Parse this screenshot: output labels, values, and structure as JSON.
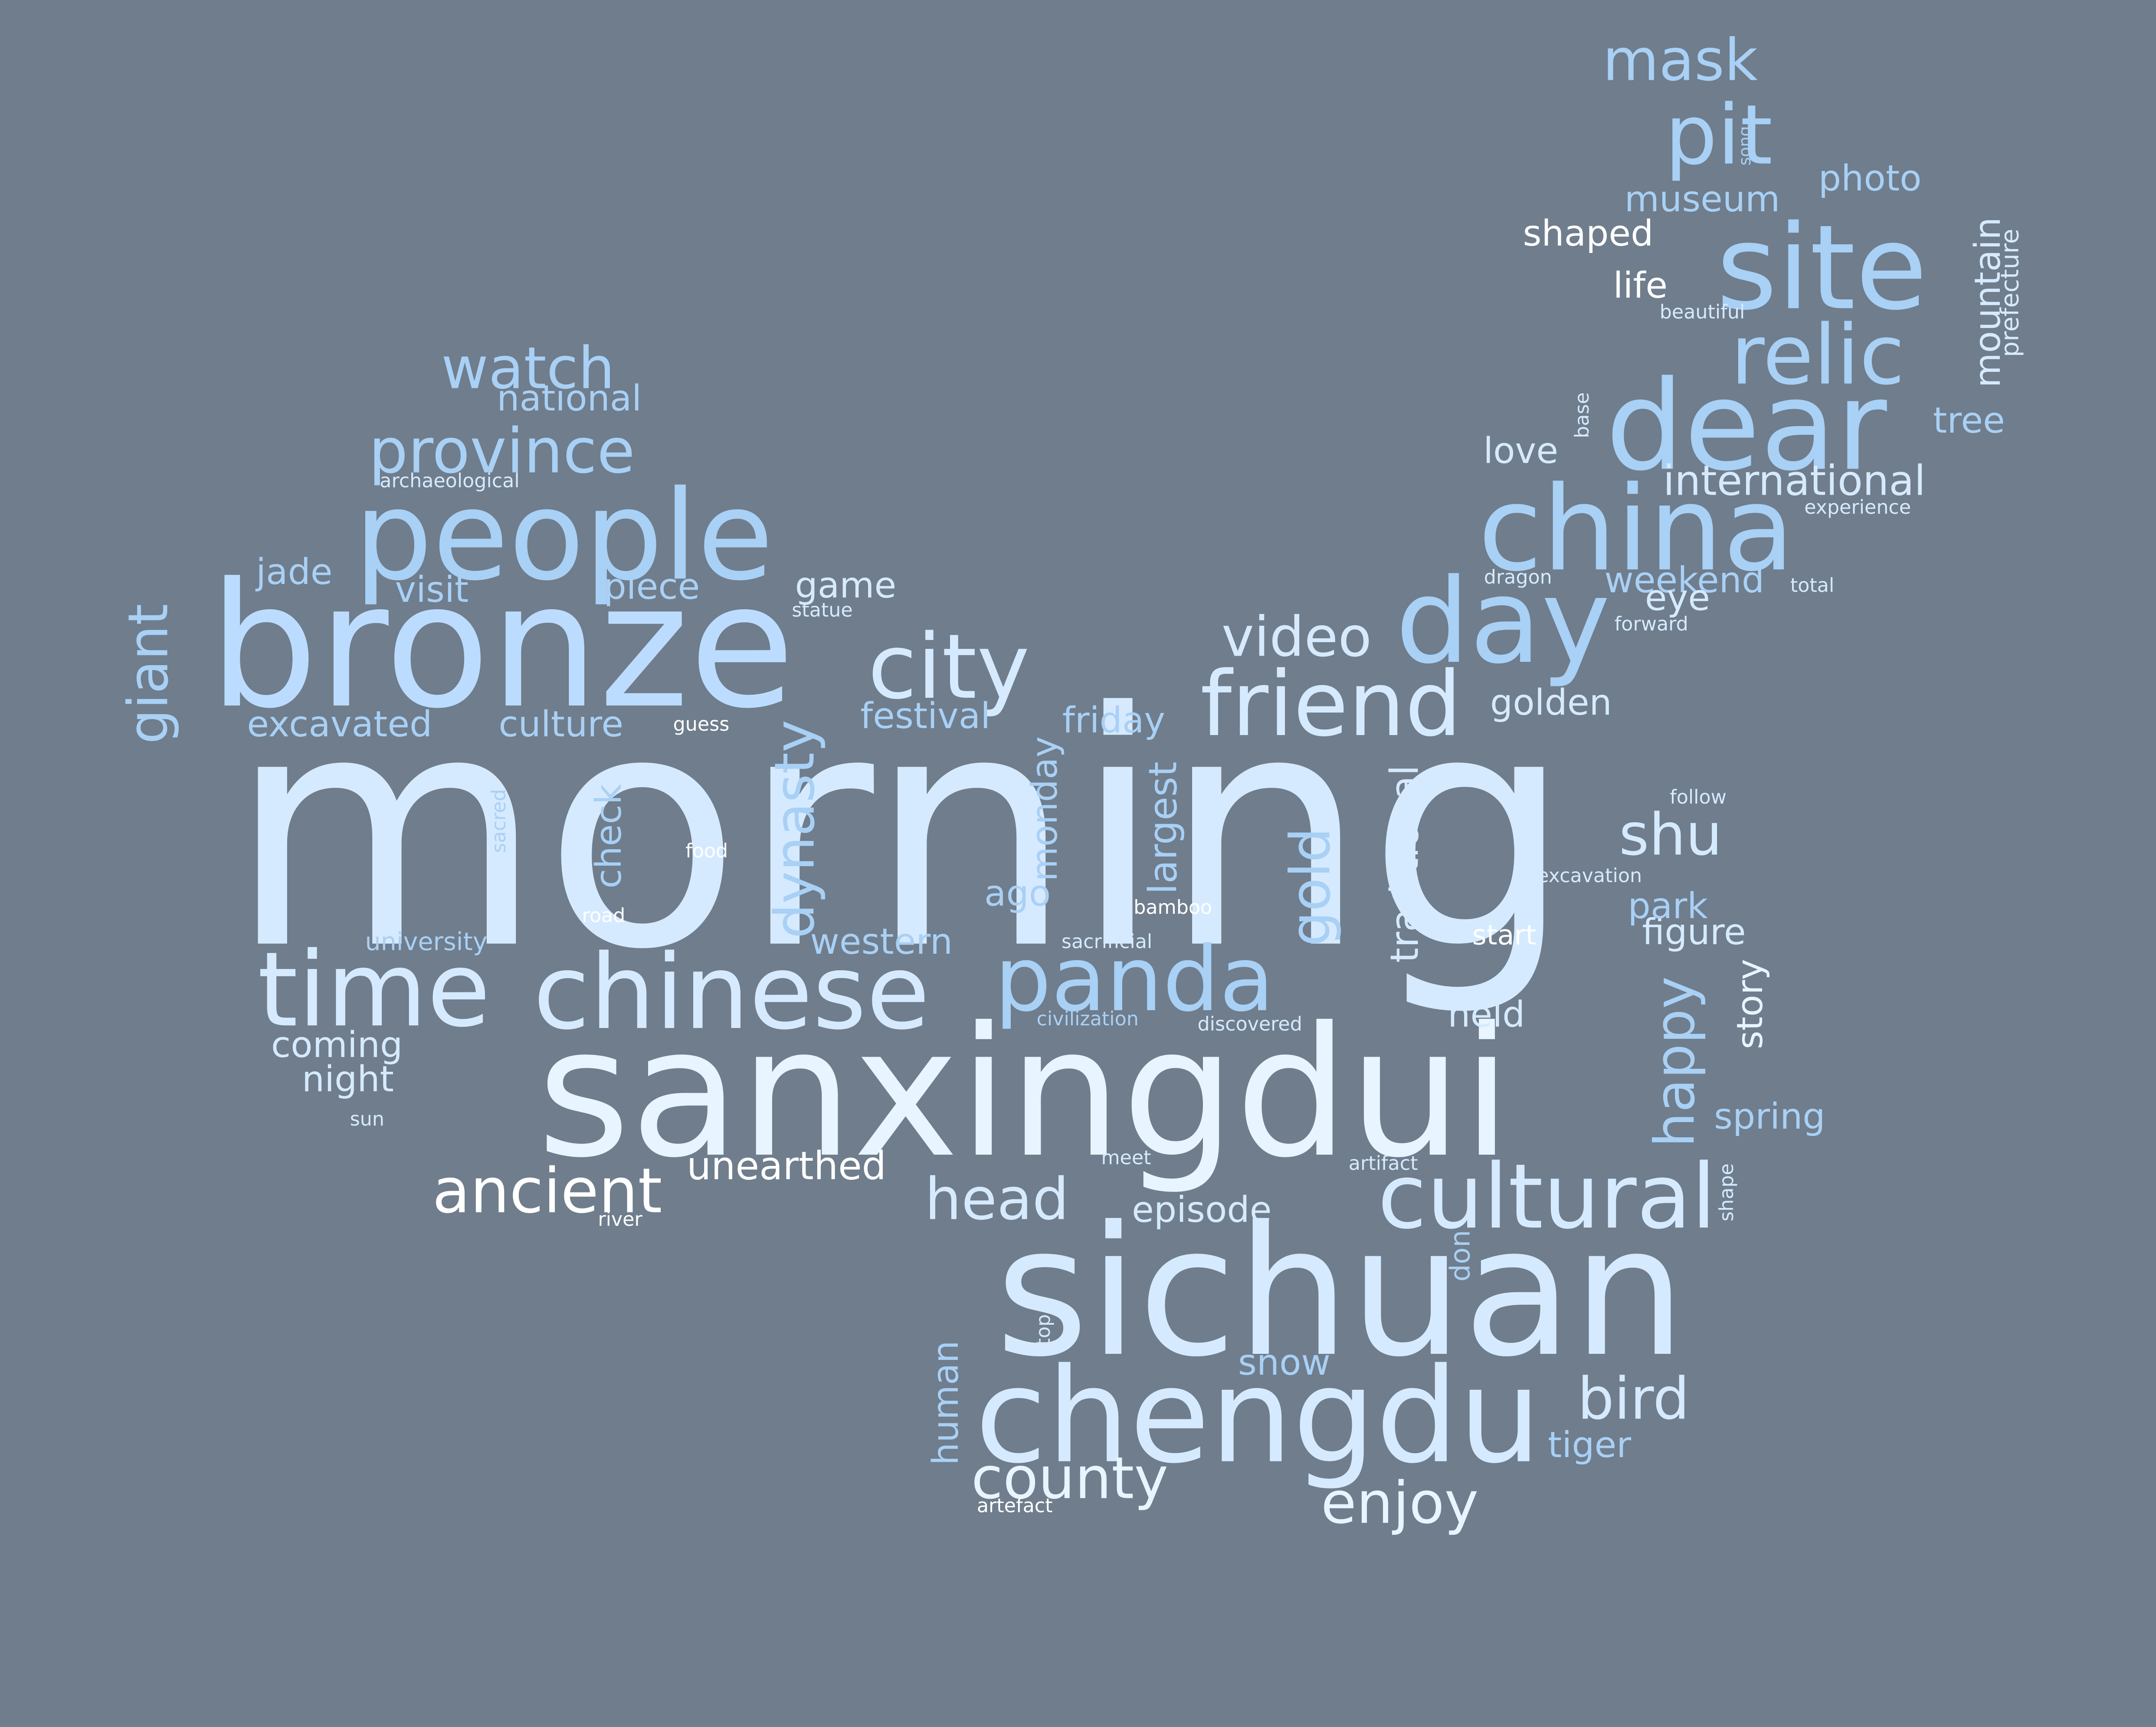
{
  "background_color": "#6f7d8c",
  "palette": {
    "white": "#ffffff",
    "pale": "#e8f4ff",
    "light": "#d6eaff",
    "mid": "#bcdcff",
    "deep": "#a9d0f5"
  },
  "words": [
    {
      "text": "morning",
      "color": "light"
    },
    {
      "text": "sanxingdui",
      "color": "pale"
    },
    {
      "text": "sichuan",
      "color": "light"
    },
    {
      "text": "bronze",
      "color": "mid"
    },
    {
      "text": "chengdu",
      "color": "light"
    },
    {
      "text": "people",
      "color": "deep"
    },
    {
      "text": "site",
      "color": "deep"
    },
    {
      "text": "dear",
      "color": "deep"
    },
    {
      "text": "china",
      "color": "deep"
    },
    {
      "text": "day",
      "color": "deep"
    },
    {
      "text": "time",
      "color": "light"
    },
    {
      "text": "chinese",
      "color": "light"
    },
    {
      "text": "panda",
      "color": "deep"
    },
    {
      "text": "cultural",
      "color": "light"
    },
    {
      "text": "city",
      "color": "light"
    },
    {
      "text": "friend",
      "color": "light"
    },
    {
      "text": "relic",
      "color": "deep"
    },
    {
      "text": "pit",
      "color": "deep"
    },
    {
      "text": "province",
      "color": "deep"
    },
    {
      "text": "ancient",
      "color": "white"
    },
    {
      "text": "head",
      "color": "light"
    },
    {
      "text": "county",
      "color": "pale"
    },
    {
      "text": "enjoy",
      "color": "pale"
    },
    {
      "text": "bird",
      "color": "light"
    },
    {
      "text": "video",
      "color": "light"
    },
    {
      "text": "watch",
      "color": "deep"
    },
    {
      "text": "mask",
      "color": "deep"
    },
    {
      "text": "dynasty",
      "color": "deep"
    },
    {
      "text": "happy",
      "color": "deep"
    },
    {
      "text": "gold",
      "color": "deep"
    },
    {
      "text": "giant",
      "color": "deep"
    },
    {
      "text": "shu",
      "color": "light"
    },
    {
      "text": "international",
      "color": "light"
    },
    {
      "text": "unearthed",
      "color": "white"
    },
    {
      "text": "traditional",
      "color": "light"
    },
    {
      "text": "largest",
      "color": "deep"
    },
    {
      "text": "museum",
      "color": "deep"
    },
    {
      "text": "shaped",
      "color": "white"
    },
    {
      "text": "photo",
      "color": "deep"
    },
    {
      "text": "excavated",
      "color": "deep"
    },
    {
      "text": "culture",
      "color": "deep"
    },
    {
      "text": "festival",
      "color": "deep"
    },
    {
      "text": "friday",
      "color": "deep"
    },
    {
      "text": "golden",
      "color": "light"
    },
    {
      "text": "weekend",
      "color": "deep"
    },
    {
      "text": "national",
      "color": "deep"
    },
    {
      "text": "western",
      "color": "deep"
    },
    {
      "text": "figure",
      "color": "light"
    },
    {
      "text": "episode",
      "color": "light"
    },
    {
      "text": "visit",
      "color": "deep"
    },
    {
      "text": "piece",
      "color": "deep"
    },
    {
      "text": "jade",
      "color": "deep"
    },
    {
      "text": "game",
      "color": "light"
    },
    {
      "text": "love",
      "color": "light"
    },
    {
      "text": "tree",
      "color": "deep"
    },
    {
      "text": "mountain",
      "color": "light"
    },
    {
      "text": "check",
      "color": "deep"
    },
    {
      "text": "monday",
      "color": "deep"
    },
    {
      "text": "park",
      "color": "deep"
    },
    {
      "text": "story",
      "color": "pale"
    },
    {
      "text": "spring",
      "color": "deep"
    },
    {
      "text": "coming",
      "color": "light"
    },
    {
      "text": "night",
      "color": "light"
    },
    {
      "text": "held",
      "color": "light"
    },
    {
      "text": "ago",
      "color": "deep"
    },
    {
      "text": "eye",
      "color": "light"
    },
    {
      "text": "life",
      "color": "white"
    },
    {
      "text": "snow",
      "color": "deep"
    },
    {
      "text": "tiger",
      "color": "deep"
    },
    {
      "text": "human",
      "color": "deep"
    },
    {
      "text": "don",
      "color": "deep"
    },
    {
      "text": "start",
      "color": "white"
    },
    {
      "text": "prefecture",
      "color": "light"
    },
    {
      "text": "university",
      "color": "deep"
    },
    {
      "text": "archaeological",
      "color": "light"
    },
    {
      "text": "statue",
      "color": "light"
    },
    {
      "text": "guess",
      "color": "white"
    },
    {
      "text": "sacred",
      "color": "deep"
    },
    {
      "text": "food",
      "color": "white"
    },
    {
      "text": "road",
      "color": "white"
    },
    {
      "text": "sun",
      "color": "light"
    },
    {
      "text": "river",
      "color": "white"
    },
    {
      "text": "beautiful",
      "color": "light"
    },
    {
      "text": "song",
      "color": "deep"
    },
    {
      "text": "base",
      "color": "light"
    },
    {
      "text": "experience",
      "color": "light"
    },
    {
      "text": "total",
      "color": "light"
    },
    {
      "text": "forward",
      "color": "light"
    },
    {
      "text": "dragon",
      "color": "light"
    },
    {
      "text": "follow",
      "color": "light"
    },
    {
      "text": "excavation",
      "color": "light"
    },
    {
      "text": "bamboo",
      "color": "white"
    },
    {
      "text": "sacrificial",
      "color": "light"
    },
    {
      "text": "civilization",
      "color": "deep"
    },
    {
      "text": "discovered",
      "color": "light"
    },
    {
      "text": "meet",
      "color": "light"
    },
    {
      "text": "artifact",
      "color": "light"
    },
    {
      "text": "shape",
      "color": "light"
    },
    {
      "text": "top",
      "color": "light"
    },
    {
      "text": "artefact",
      "color": "white"
    }
  ]
}
